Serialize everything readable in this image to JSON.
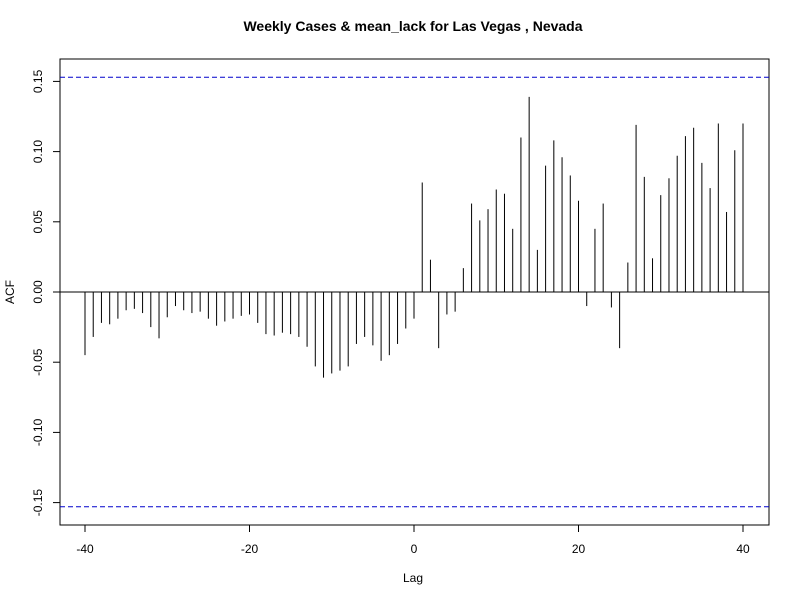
{
  "chart_data": {
    "type": "bar",
    "title": "Weekly Cases & mean_lack for Las Vegas , Nevada",
    "xlabel": "Lag",
    "ylabel": "ACF",
    "xlim": [
      -40,
      40
    ],
    "ylim": [
      -0.165,
      0.165
    ],
    "x_ticks": [
      -40,
      -20,
      0,
      20,
      40
    ],
    "x_tick_labels": [
      "-40",
      "-20",
      "0",
      "20",
      "40"
    ],
    "y_ticks": [
      -0.15,
      -0.1,
      -0.05,
      0.0,
      0.05,
      0.1,
      0.15
    ],
    "y_tick_labels": [
      "-0.15",
      "-0.10",
      "-0.05",
      "0.00",
      "0.05",
      "0.10",
      "0.15"
    ],
    "confidence_band": 0.153,
    "confidence_color": "#0000cc",
    "line_color": "#000000",
    "lags": [
      -40,
      -39,
      -38,
      -37,
      -36,
      -35,
      -34,
      -33,
      -32,
      -31,
      -30,
      -29,
      -28,
      -27,
      -26,
      -25,
      -24,
      -23,
      -22,
      -21,
      -20,
      -19,
      -18,
      -17,
      -16,
      -15,
      -14,
      -13,
      -12,
      -11,
      -10,
      -9,
      -8,
      -7,
      -6,
      -5,
      -4,
      -3,
      -2,
      -1,
      0,
      1,
      2,
      3,
      4,
      5,
      6,
      7,
      8,
      9,
      10,
      11,
      12,
      13,
      14,
      15,
      16,
      17,
      18,
      19,
      20,
      21,
      22,
      23,
      24,
      25,
      26,
      27,
      28,
      29,
      30,
      31,
      32,
      33,
      34,
      35,
      36,
      37,
      38,
      39,
      40
    ],
    "values": [
      -0.045,
      -0.032,
      -0.022,
      -0.023,
      -0.019,
      -0.013,
      -0.012,
      -0.015,
      -0.025,
      -0.033,
      -0.018,
      -0.01,
      -0.013,
      -0.015,
      -0.014,
      -0.019,
      -0.024,
      -0.021,
      -0.019,
      -0.017,
      -0.016,
      -0.022,
      -0.03,
      -0.031,
      -0.029,
      -0.03,
      -0.032,
      -0.039,
      -0.053,
      -0.061,
      -0.058,
      -0.056,
      -0.053,
      -0.037,
      -0.032,
      -0.038,
      -0.049,
      -0.045,
      -0.037,
      -0.026,
      -0.019,
      0.078,
      0.023,
      -0.04,
      -0.016,
      -0.014,
      0.017,
      0.063,
      0.051,
      0.059,
      0.073,
      0.07,
      0.045,
      0.11,
      0.139,
      0.03,
      0.09,
      0.108,
      0.096,
      0.083,
      0.065,
      -0.01,
      0.045,
      0.063,
      -0.011,
      -0.04,
      0.021,
      0.119,
      0.082,
      0.024,
      0.069,
      0.081,
      0.097,
      0.111,
      0.117,
      0.092,
      0.074,
      0.12,
      0.057,
      0.101,
      0.12
    ]
  }
}
